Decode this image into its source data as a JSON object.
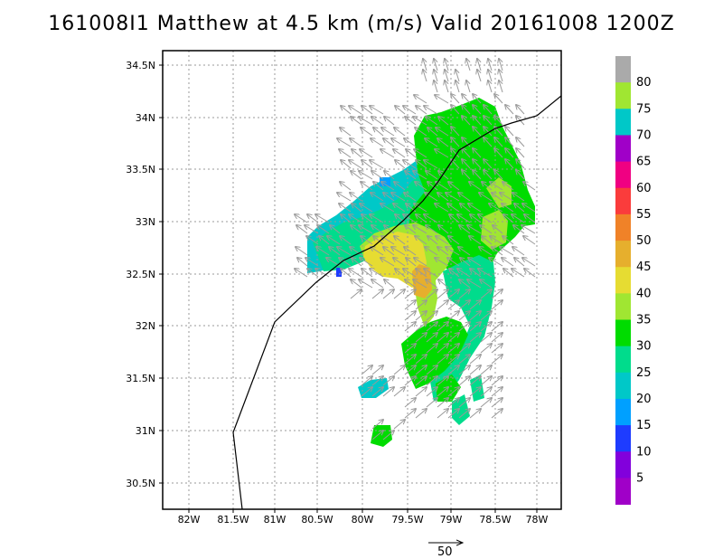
{
  "title": "161008I1 Matthew at 4.5 km (m/s) Valid 20161008 1200Z",
  "lat_labels": [
    "34.5N",
    "34N",
    "33.5N",
    "33N",
    "32.5N",
    "32N",
    "31.5N",
    "31N",
    "30.5N"
  ],
  "lon_labels": [
    "82W",
    "81.5W",
    "81W",
    "80.5W",
    "80W",
    "79.5W",
    "79W",
    "78.5W",
    "78W"
  ],
  "colorbar": {
    "labels": [
      "5",
      "10",
      "15",
      "20",
      "25",
      "30",
      "35",
      "40",
      "45",
      "50",
      "55",
      "60",
      "65",
      "70",
      "75",
      "80"
    ],
    "colors": [
      "#a000c8",
      "#8200dc",
      "#1e3cff",
      "#00a0ff",
      "#00c8c8",
      "#00dc8c",
      "#00dc00",
      "#a0e632",
      "#e6dc32",
      "#e6af2d",
      "#f08228",
      "#fa3c3c",
      "#f00082",
      "#a000c8",
      "#00c8c8",
      "#a0e632",
      "#aaaaaa"
    ]
  },
  "vector_scale_label": "50",
  "field_colors": {
    "c20": "#00c8c8",
    "c25": "#00dc8c",
    "c30": "#00dc00",
    "c35": "#a0e632",
    "c40": "#e6dc32",
    "c45": "#e6af2d",
    "c15": "#00a0ff",
    "c10": "#1e3cff"
  }
}
